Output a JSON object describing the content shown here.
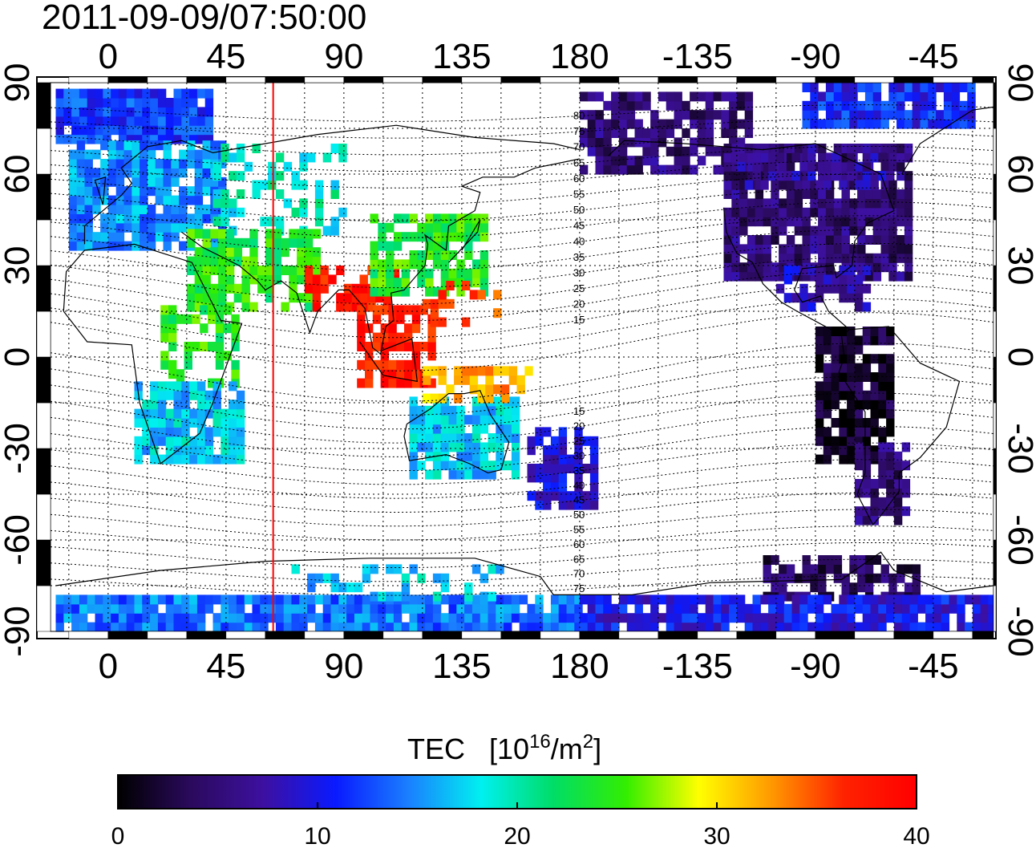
{
  "title": "2011-09-09/07:50:00",
  "colorbar": {
    "label_main": "TEC",
    "label_unit_open": "[10",
    "label_unit_exp": "16",
    "label_unit_mid": "/m",
    "label_unit_exp2": "2",
    "label_unit_close": "]",
    "min": 0,
    "max": 40,
    "ticks": [
      "0",
      "10",
      "20",
      "30",
      "40"
    ],
    "colors": [
      "#000000",
      "#2a0a5c",
      "#3d10a0",
      "#0a1aff",
      "#1a7fff",
      "#00f0f0",
      "#00dd66",
      "#33ee00",
      "#ffff00",
      "#ff9900",
      "#ff2200",
      "#ff0000"
    ]
  },
  "map": {
    "projection": "equirectangular",
    "lon_range": [
      -22,
      338
    ],
    "lat_range": [
      -90,
      90
    ],
    "lon_tick_values": [
      0,
      45,
      90,
      135,
      180,
      225,
      270,
      315
    ],
    "lon_tick_labels": [
      "0",
      "45",
      "90",
      "135",
      "180",
      "-135",
      "-90",
      "-45"
    ],
    "lat_tick_values": [
      90,
      60,
      30,
      0,
      -30,
      -60,
      -90
    ],
    "lat_tick_labels": [
      "90",
      "60",
      "30",
      "0",
      "-30",
      "-60",
      "-90"
    ],
    "grid": "dotted, every 15 degrees",
    "terminator_lon": 63,
    "terminator_color": "#ff0000",
    "mlat_labels": [
      "80",
      "75",
      "70",
      "65",
      "60",
      "55",
      "50",
      "45",
      "40",
      "35",
      "30",
      "25",
      "20",
      "15",
      "15",
      "20",
      "25",
      "30",
      "35",
      "40",
      "45",
      "50",
      "55",
      "60",
      "65",
      "70",
      "75"
    ],
    "mlat_label_values": [
      80,
      75,
      70,
      65,
      60,
      55,
      50,
      45,
      40,
      35,
      30,
      25,
      20,
      15,
      -15,
      -20,
      -25,
      -30,
      -35,
      -40,
      -45,
      -50,
      -55,
      -60,
      -65,
      -70,
      -75
    ]
  }
}
